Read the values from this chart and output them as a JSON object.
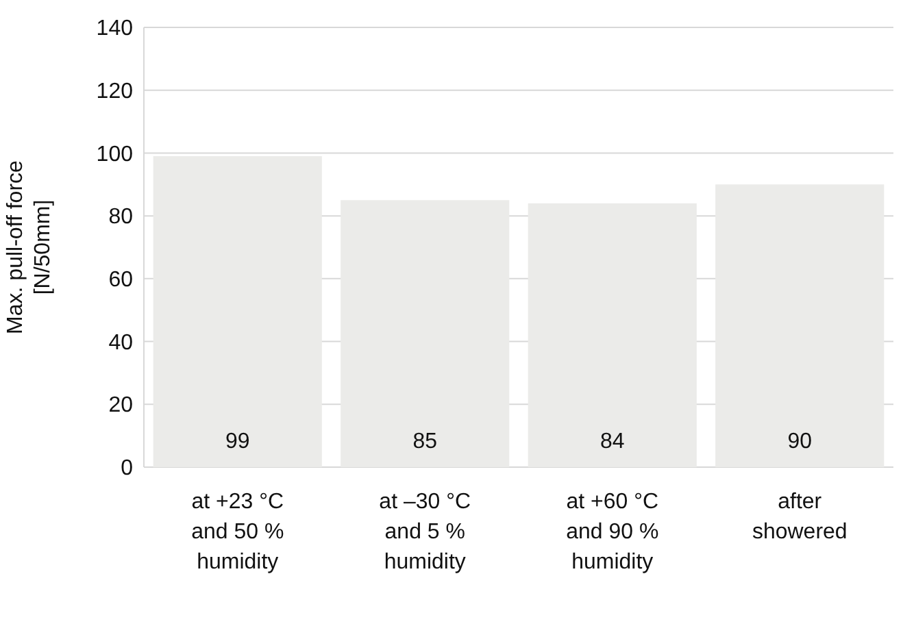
{
  "chart_data": {
    "type": "bar",
    "ylabel": "Max. pull-off force\n[N/50mm]",
    "categories": [
      "at +23 °C\nand 50 %\nhumidity",
      "at –30 °C\nand 5 %\nhumidity",
      "at +60 °C\nand 90 %\nhumidity",
      "after\nshowered"
    ],
    "values": [
      99,
      85,
      84,
      90
    ],
    "color": "#ebebe9",
    "data_labels": true,
    "ylim": [
      0,
      140
    ],
    "yticks": [
      0,
      20,
      40,
      60,
      80,
      100,
      120,
      140
    ],
    "grid": "y"
  }
}
